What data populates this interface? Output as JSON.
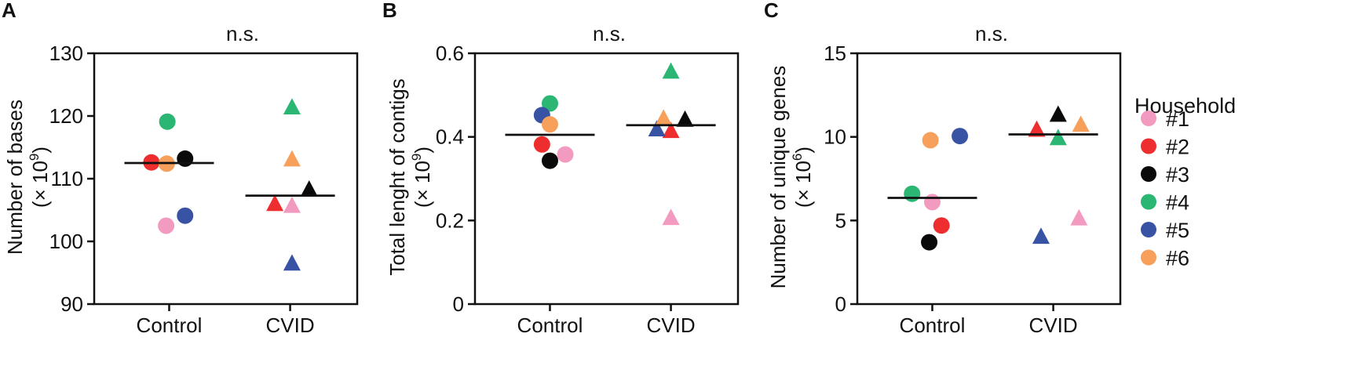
{
  "colors": {
    "h1": "#f29ac0",
    "h2": "#ee2e2e",
    "h3": "#0a0a0a",
    "h4": "#2bb673",
    "h5": "#3953a4",
    "h6": "#f7a05b"
  },
  "legend": {
    "title": "Household",
    "items": [
      {
        "label": "#1",
        "key": "h1"
      },
      {
        "label": "#2",
        "key": "h2"
      },
      {
        "label": "#3",
        "key": "h3"
      },
      {
        "label": "#4",
        "key": "h4"
      },
      {
        "label": "#5",
        "key": "h5"
      },
      {
        "label": "#6",
        "key": "h6"
      }
    ]
  },
  "chart_data": [
    {
      "type": "scatter",
      "panel": "A",
      "significance": "n.s.",
      "ylabel_line1": "Number of bases",
      "ylabel_line2_prefix": "(× 10",
      "ylabel_exponent": "9",
      "ylabel_line2_suffix": ")",
      "ylim": [
        90,
        130
      ],
      "yticks": [
        90,
        100,
        110,
        120,
        130
      ],
      "categories": [
        "Control",
        "CVID"
      ],
      "means": [
        112.5,
        107.3
      ],
      "points": [
        {
          "group": "Control",
          "household": "h1",
          "y": 102.5,
          "marker": "circle",
          "jitter": -0.05
        },
        {
          "group": "Control",
          "household": "h2",
          "y": 112.6,
          "marker": "circle",
          "jitter": -0.29
        },
        {
          "group": "Control",
          "household": "h3",
          "y": 113.2,
          "marker": "circle",
          "jitter": 0.26
        },
        {
          "group": "Control",
          "household": "h4",
          "y": 119.1,
          "marker": "circle",
          "jitter": -0.03
        },
        {
          "group": "Control",
          "household": "h5",
          "y": 104.1,
          "marker": "circle",
          "jitter": 0.26
        },
        {
          "group": "Control",
          "household": "h6",
          "y": 112.4,
          "marker": "circle",
          "jitter": -0.04
        },
        {
          "group": "CVID",
          "household": "h1",
          "y": 105.6,
          "marker": "triangle",
          "jitter": 0.03
        },
        {
          "group": "CVID",
          "household": "h2",
          "y": 105.9,
          "marker": "triangle",
          "jitter": -0.25
        },
        {
          "group": "CVID",
          "household": "h3",
          "y": 108.2,
          "marker": "triangle",
          "jitter": 0.31
        },
        {
          "group": "CVID",
          "household": "h4",
          "y": 121.3,
          "marker": "triangle",
          "jitter": 0.03
        },
        {
          "group": "CVID",
          "household": "h5",
          "y": 96.4,
          "marker": "triangle",
          "jitter": 0.03
        },
        {
          "group": "CVID",
          "household": "h6",
          "y": 113.0,
          "marker": "triangle",
          "jitter": 0.03
        }
      ]
    },
    {
      "type": "scatter",
      "panel": "B",
      "significance": "n.s.",
      "ylabel_line1": "Total lenght of contigs",
      "ylabel_line2_prefix": "(× 10",
      "ylabel_exponent": "9",
      "ylabel_line2_suffix": ")",
      "ylim": [
        0,
        0.6
      ],
      "yticks": [
        0,
        0.2,
        0.4,
        0.6
      ],
      "ytick_labels": [
        "0",
        "0.2",
        "0.4",
        "0.6"
      ],
      "categories": [
        "Control",
        "CVID"
      ],
      "means": [
        0.405,
        0.428
      ],
      "points": [
        {
          "group": "Control",
          "household": "h1",
          "y": 0.358,
          "marker": "circle",
          "jitter": 0.25
        },
        {
          "group": "Control",
          "household": "h2",
          "y": 0.382,
          "marker": "circle",
          "jitter": -0.13
        },
        {
          "group": "Control",
          "household": "h3",
          "y": 0.343,
          "marker": "circle",
          "jitter": 0.0
        },
        {
          "group": "Control",
          "household": "h4",
          "y": 0.48,
          "marker": "circle",
          "jitter": 0.0
        },
        {
          "group": "Control",
          "household": "h5",
          "y": 0.452,
          "marker": "circle",
          "jitter": -0.13
        },
        {
          "group": "Control",
          "household": "h6",
          "y": 0.43,
          "marker": "circle",
          "jitter": 0.0
        },
        {
          "group": "CVID",
          "household": "h1",
          "y": 0.205,
          "marker": "triangle",
          "jitter": 0.0
        },
        {
          "group": "CVID",
          "household": "h2",
          "y": 0.413,
          "marker": "triangle",
          "jitter": 0.0
        },
        {
          "group": "CVID",
          "household": "h3",
          "y": 0.44,
          "marker": "triangle",
          "jitter": 0.23
        },
        {
          "group": "CVID",
          "household": "h4",
          "y": 0.555,
          "marker": "triangle",
          "jitter": 0.0
        },
        {
          "group": "CVID",
          "household": "h5",
          "y": 0.417,
          "marker": "triangle",
          "jitter": -0.23
        },
        {
          "group": "CVID",
          "household": "h6",
          "y": 0.443,
          "marker": "triangle",
          "jitter": -0.12
        }
      ]
    },
    {
      "type": "scatter",
      "panel": "C",
      "significance": "n.s.",
      "ylabel_line1": "Number of unique genes",
      "ylabel_line2_prefix": "(× 10",
      "ylabel_exponent": "6",
      "ylabel_line2_suffix": ")",
      "ylim": [
        0,
        15
      ],
      "yticks": [
        0,
        5,
        10,
        15
      ],
      "categories": [
        "Control",
        "CVID"
      ],
      "means": [
        6.35,
        10.15
      ],
      "points": [
        {
          "group": "Control",
          "household": "h1",
          "y": 6.1,
          "marker": "circle",
          "jitter": 0.0
        },
        {
          "group": "Control",
          "household": "h2",
          "y": 4.7,
          "marker": "circle",
          "jitter": 0.15
        },
        {
          "group": "Control",
          "household": "h3",
          "y": 3.7,
          "marker": "circle",
          "jitter": -0.05
        },
        {
          "group": "Control",
          "household": "h4",
          "y": 6.6,
          "marker": "circle",
          "jitter": -0.33
        },
        {
          "group": "Control",
          "household": "h5",
          "y": 10.05,
          "marker": "circle",
          "jitter": 0.45
        },
        {
          "group": "Control",
          "household": "h6",
          "y": 9.8,
          "marker": "circle",
          "jitter": -0.03
        },
        {
          "group": "CVID",
          "household": "h1",
          "y": 5.1,
          "marker": "triangle",
          "jitter": 0.42
        },
        {
          "group": "CVID",
          "household": "h2",
          "y": 10.4,
          "marker": "triangle",
          "jitter": -0.27
        },
        {
          "group": "CVID",
          "household": "h3",
          "y": 11.3,
          "marker": "triangle",
          "jitter": 0.08
        },
        {
          "group": "CVID",
          "household": "h4",
          "y": 9.9,
          "marker": "triangle",
          "jitter": 0.08
        },
        {
          "group": "CVID",
          "household": "h5",
          "y": 4.0,
          "marker": "triangle",
          "jitter": -0.2
        },
        {
          "group": "CVID",
          "household": "h6",
          "y": 10.7,
          "marker": "triangle",
          "jitter": 0.45
        }
      ]
    }
  ]
}
